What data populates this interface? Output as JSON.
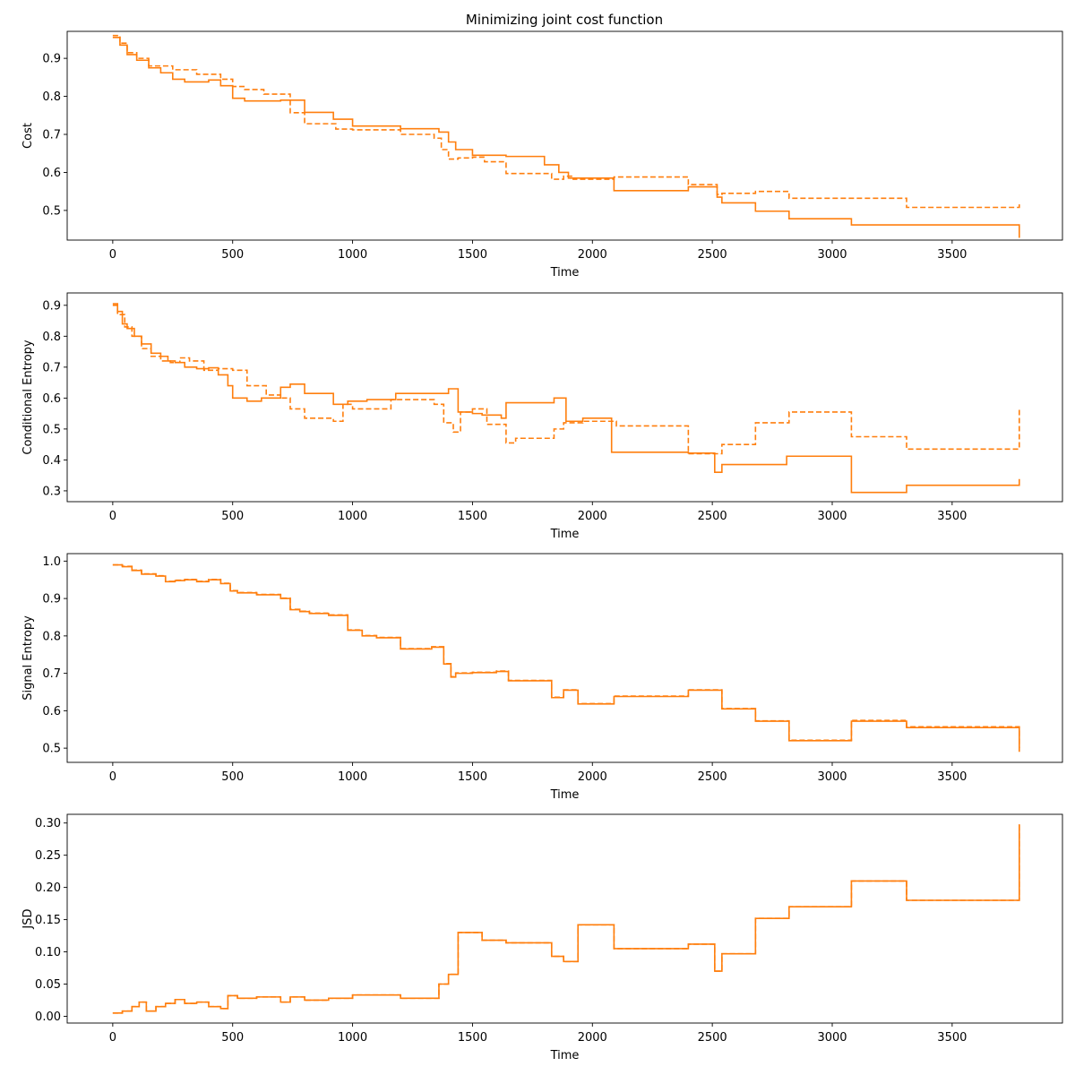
{
  "figure": {
    "title": "Minimizing joint cost function"
  },
  "colors": {
    "line": "#ff7f0e",
    "axes": "#000000",
    "background": "#ffffff"
  },
  "chart_data": [
    {
      "type": "line",
      "title": "Minimizing joint cost function",
      "xlabel": "Time",
      "ylabel": "Cost",
      "xlim": [
        -190,
        3960
      ],
      "ylim": [
        0.422,
        0.971
      ],
      "xticks": [
        0,
        500,
        1000,
        1500,
        2000,
        2500,
        3000,
        3500
      ],
      "yticks": [
        0.5,
        0.6,
        0.7,
        0.8,
        0.9
      ],
      "ytick_labels": [
        "0.5",
        "0.6",
        "0.7",
        "0.8",
        "0.9"
      ],
      "series": [
        {
          "style": "solid",
          "step": true,
          "x": [
            0,
            30,
            60,
            100,
            150,
            200,
            250,
            300,
            400,
            450,
            500,
            550,
            700,
            800,
            920,
            1000,
            1200,
            1360,
            1400,
            1430,
            1500,
            1640,
            1800,
            1860,
            1900,
            2090,
            2400,
            2520,
            2540,
            2680,
            2820,
            3080,
            3780
          ],
          "y": [
            0.955,
            0.935,
            0.91,
            0.895,
            0.875,
            0.862,
            0.845,
            0.838,
            0.843,
            0.828,
            0.795,
            0.788,
            0.79,
            0.758,
            0.74,
            0.722,
            0.715,
            0.706,
            0.68,
            0.66,
            0.645,
            0.642,
            0.62,
            0.6,
            0.585,
            0.552,
            0.562,
            0.535,
            0.52,
            0.498,
            0.478,
            0.462,
            0.428
          ]
        },
        {
          "style": "dashed",
          "step": true,
          "x": [
            0,
            30,
            60,
            100,
            150,
            250,
            350,
            450,
            500,
            550,
            630,
            740,
            800,
            930,
            1000,
            1200,
            1340,
            1370,
            1400,
            1440,
            1500,
            1550,
            1640,
            1830,
            1880,
            1920,
            2090,
            2400,
            2520,
            2540,
            2680,
            2820,
            3080,
            3310,
            3780
          ],
          "y": [
            0.96,
            0.94,
            0.915,
            0.9,
            0.88,
            0.87,
            0.858,
            0.845,
            0.826,
            0.818,
            0.806,
            0.757,
            0.728,
            0.714,
            0.712,
            0.7,
            0.69,
            0.66,
            0.635,
            0.638,
            0.64,
            0.628,
            0.597,
            0.582,
            0.59,
            0.582,
            0.588,
            0.568,
            0.542,
            0.545,
            0.55,
            0.532,
            0.532,
            0.508,
            0.518
          ]
        }
      ]
    },
    {
      "type": "line",
      "xlabel": "Time",
      "ylabel": "Conditional Entropy",
      "xlim": [
        -190,
        3960
      ],
      "ylim": [
        0.265,
        0.94
      ],
      "xticks": [
        0,
        500,
        1000,
        1500,
        2000,
        2500,
        3000,
        3500
      ],
      "yticks": [
        0.3,
        0.4,
        0.5,
        0.6,
        0.7,
        0.8,
        0.9
      ],
      "ytick_labels": [
        "0.3",
        "0.4",
        "0.5",
        "0.6",
        "0.7",
        "0.8",
        "0.9"
      ],
      "series": [
        {
          "style": "solid",
          "step": true,
          "x": [
            0,
            20,
            40,
            60,
            90,
            120,
            160,
            200,
            230,
            260,
            300,
            350,
            400,
            440,
            480,
            500,
            560,
            620,
            700,
            740,
            800,
            920,
            980,
            1060,
            1180,
            1360,
            1400,
            1440,
            1500,
            1540,
            1620,
            1640,
            1840,
            1890,
            1960,
            2080,
            2400,
            2510,
            2540,
            2810,
            3080,
            3310,
            3780
          ],
          "y": [
            0.905,
            0.88,
            0.84,
            0.825,
            0.8,
            0.775,
            0.745,
            0.735,
            0.72,
            0.715,
            0.7,
            0.695,
            0.698,
            0.675,
            0.64,
            0.6,
            0.59,
            0.6,
            0.635,
            0.645,
            0.615,
            0.58,
            0.59,
            0.595,
            0.615,
            0.615,
            0.63,
            0.555,
            0.55,
            0.545,
            0.535,
            0.585,
            0.6,
            0.525,
            0.535,
            0.425,
            0.422,
            0.36,
            0.385,
            0.412,
            0.295,
            0.318,
            0.338
          ]
        },
        {
          "style": "dashed",
          "step": true,
          "x": [
            0,
            20,
            50,
            80,
            120,
            160,
            200,
            240,
            280,
            320,
            380,
            440,
            500,
            560,
            640,
            700,
            740,
            800,
            920,
            960,
            1000,
            1160,
            1340,
            1380,
            1420,
            1450,
            1500,
            1560,
            1640,
            1680,
            1840,
            1880,
            1960,
            2100,
            2400,
            2540,
            2680,
            2820,
            3080,
            3310,
            3780
          ],
          "y": [
            0.9,
            0.87,
            0.83,
            0.8,
            0.76,
            0.735,
            0.72,
            0.715,
            0.73,
            0.72,
            0.69,
            0.695,
            0.69,
            0.64,
            0.61,
            0.6,
            0.565,
            0.535,
            0.525,
            0.58,
            0.565,
            0.595,
            0.58,
            0.52,
            0.49,
            0.555,
            0.565,
            0.515,
            0.455,
            0.47,
            0.5,
            0.52,
            0.525,
            0.51,
            0.42,
            0.45,
            0.52,
            0.555,
            0.475,
            0.435,
            0.565
          ]
        }
      ]
    },
    {
      "type": "line",
      "xlabel": "Time",
      "ylabel": "Signal Entropy",
      "xlim": [
        -190,
        3960
      ],
      "ylim": [
        0.462,
        1.02
      ],
      "xticks": [
        0,
        500,
        1000,
        1500,
        2000,
        2500,
        3000,
        3500
      ],
      "yticks": [
        0.5,
        0.6,
        0.7,
        0.8,
        0.9,
        1.0
      ],
      "ytick_labels": [
        "0.5",
        "0.6",
        "0.7",
        "0.8",
        "0.9",
        "1.0"
      ],
      "series": [
        {
          "style": "solid",
          "step": true,
          "x": [
            0,
            40,
            80,
            120,
            180,
            220,
            260,
            300,
            350,
            400,
            450,
            490,
            520,
            600,
            700,
            740,
            780,
            820,
            900,
            980,
            1040,
            1100,
            1200,
            1330,
            1380,
            1410,
            1430,
            1500,
            1600,
            1650,
            1830,
            1880,
            1940,
            2090,
            2400,
            2540,
            2680,
            2820,
            3080,
            3310,
            3780
          ],
          "y": [
            0.99,
            0.985,
            0.975,
            0.965,
            0.96,
            0.945,
            0.948,
            0.95,
            0.945,
            0.95,
            0.94,
            0.92,
            0.915,
            0.91,
            0.9,
            0.87,
            0.865,
            0.86,
            0.855,
            0.815,
            0.8,
            0.795,
            0.765,
            0.77,
            0.725,
            0.69,
            0.7,
            0.702,
            0.705,
            0.68,
            0.635,
            0.655,
            0.618,
            0.638,
            0.655,
            0.605,
            0.572,
            0.52,
            0.572,
            0.555,
            0.49
          ]
        },
        {
          "style": "dashed",
          "step": true,
          "x": [
            0,
            40,
            80,
            120,
            180,
            220,
            260,
            300,
            350,
            400,
            450,
            490,
            520,
            600,
            700,
            740,
            780,
            820,
            900,
            980,
            1040,
            1100,
            1200,
            1330,
            1380,
            1410,
            1430,
            1500,
            1600,
            1650,
            1830,
            1880,
            1940,
            2090,
            2400,
            2540,
            2680,
            2820,
            3080,
            3310,
            3780
          ],
          "y": [
            0.99,
            0.986,
            0.976,
            0.966,
            0.961,
            0.946,
            0.949,
            0.951,
            0.946,
            0.951,
            0.941,
            0.921,
            0.916,
            0.911,
            0.901,
            0.871,
            0.866,
            0.861,
            0.856,
            0.816,
            0.801,
            0.796,
            0.766,
            0.771,
            0.726,
            0.691,
            0.701,
            0.703,
            0.706,
            0.681,
            0.636,
            0.656,
            0.619,
            0.639,
            0.656,
            0.606,
            0.573,
            0.521,
            0.574,
            0.557,
            0.5
          ]
        }
      ]
    },
    {
      "type": "line",
      "xlabel": "Time",
      "ylabel": "JSD",
      "xlim": [
        -190,
        3960
      ],
      "ylim": [
        -0.0105,
        0.3135
      ],
      "xticks": [
        0,
        500,
        1000,
        1500,
        2000,
        2500,
        3000,
        3500
      ],
      "yticks": [
        0.0,
        0.05,
        0.1,
        0.15,
        0.2,
        0.25,
        0.3
      ],
      "ytick_labels": [
        "0.00",
        "0.05",
        "0.10",
        "0.15",
        "0.20",
        "0.25",
        "0.30"
      ],
      "series": [
        {
          "style": "solid",
          "step": true,
          "x": [
            0,
            40,
            80,
            110,
            140,
            180,
            220,
            260,
            300,
            350,
            400,
            450,
            480,
            520,
            600,
            700,
            740,
            800,
            900,
            1000,
            1200,
            1360,
            1400,
            1440,
            1540,
            1640,
            1830,
            1880,
            1940,
            2090,
            2400,
            2510,
            2540,
            2680,
            2820,
            3080,
            3310,
            3780
          ],
          "y": [
            0.005,
            0.008,
            0.015,
            0.022,
            0.008,
            0.015,
            0.02,
            0.026,
            0.02,
            0.022,
            0.015,
            0.012,
            0.032,
            0.028,
            0.03,
            0.022,
            0.03,
            0.025,
            0.028,
            0.033,
            0.028,
            0.05,
            0.065,
            0.13,
            0.118,
            0.114,
            0.093,
            0.085,
            0.142,
            0.105,
            0.112,
            0.07,
            0.097,
            0.152,
            0.17,
            0.21,
            0.18,
            0.298
          ]
        },
        {
          "style": "dashed",
          "step": true,
          "x": [
            0,
            40,
            80,
            110,
            140,
            180,
            220,
            260,
            300,
            350,
            400,
            450,
            480,
            520,
            600,
            700,
            740,
            800,
            900,
            1000,
            1200,
            1360,
            1400,
            1440,
            1540,
            1640,
            1830,
            1880,
            1940,
            2090,
            2400,
            2510,
            2540,
            2680,
            2820,
            3080,
            3310,
            3780
          ],
          "y": [
            0.005,
            0.008,
            0.015,
            0.022,
            0.008,
            0.015,
            0.02,
            0.026,
            0.02,
            0.022,
            0.015,
            0.012,
            0.032,
            0.028,
            0.03,
            0.022,
            0.03,
            0.025,
            0.028,
            0.033,
            0.028,
            0.05,
            0.065,
            0.13,
            0.118,
            0.114,
            0.093,
            0.085,
            0.142,
            0.105,
            0.112,
            0.07,
            0.097,
            0.152,
            0.17,
            0.21,
            0.18,
            0.298
          ]
        }
      ]
    }
  ]
}
